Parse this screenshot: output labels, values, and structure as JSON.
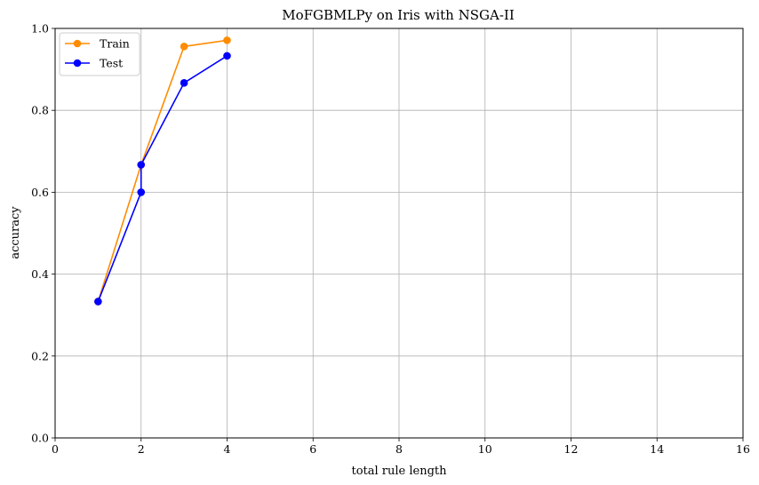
{
  "chart_data": {
    "type": "line",
    "title": "MoFGBMLPy on Iris with NSGA-II",
    "xlabel": "total rule length",
    "ylabel": "accuracy",
    "xlim": [
      0,
      16
    ],
    "ylim": [
      0,
      1.0
    ],
    "x_ticks": [
      "0",
      "2",
      "4",
      "6",
      "8",
      "10",
      "12",
      "14",
      "16"
    ],
    "y_ticks": [
      "0.0",
      "0.2",
      "0.4",
      "0.6",
      "0.8",
      "1.0"
    ],
    "grid": true,
    "legend_position": "top-left",
    "series": [
      {
        "name": "Train",
        "color": "#ff8c00",
        "x": [
          1,
          2,
          3,
          4
        ],
        "y": [
          0.333,
          0.667,
          0.956,
          0.971
        ]
      },
      {
        "name": "Test",
        "color": "#0000ff",
        "x": [
          1,
          2,
          2,
          3,
          4
        ],
        "y": [
          0.333,
          0.6,
          0.667,
          0.867,
          0.933
        ]
      }
    ]
  }
}
